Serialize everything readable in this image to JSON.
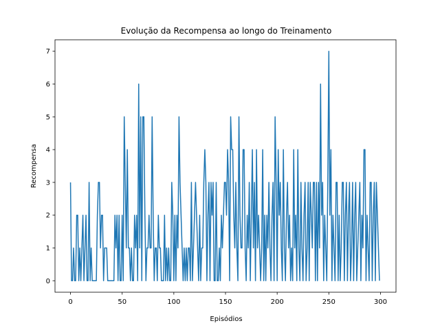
{
  "chart_data": {
    "type": "line",
    "title": "Evolução da Recompensa ao longo do Treinamento",
    "x_label": "Episódios",
    "y_label": "Recompensa",
    "x": [
      0,
      1,
      2,
      3,
      4,
      5,
      6,
      7,
      8,
      9,
      10,
      11,
      12,
      13,
      14,
      15,
      16,
      17,
      18,
      19,
      20,
      21,
      22,
      23,
      24,
      25,
      26,
      27,
      28,
      29,
      30,
      31,
      32,
      33,
      34,
      35,
      36,
      37,
      38,
      39,
      40,
      41,
      42,
      43,
      44,
      45,
      46,
      47,
      48,
      49,
      50,
      51,
      52,
      53,
      54,
      55,
      56,
      57,
      58,
      59,
      60,
      61,
      62,
      63,
      64,
      65,
      66,
      67,
      68,
      69,
      70,
      71,
      72,
      73,
      74,
      75,
      76,
      77,
      78,
      79,
      80,
      81,
      82,
      83,
      84,
      85,
      86,
      87,
      88,
      89,
      90,
      91,
      92,
      93,
      94,
      95,
      96,
      97,
      98,
      99,
      100,
      101,
      102,
      103,
      104,
      105,
      106,
      107,
      108,
      109,
      110,
      111,
      112,
      113,
      114,
      115,
      116,
      117,
      118,
      119,
      120,
      121,
      122,
      123,
      124,
      125,
      126,
      127,
      128,
      129,
      130,
      131,
      132,
      133,
      134,
      135,
      136,
      137,
      138,
      139,
      140,
      141,
      142,
      143,
      144,
      145,
      146,
      147,
      148,
      149,
      150,
      151,
      152,
      153,
      154,
      155,
      156,
      157,
      158,
      159,
      160,
      161,
      162,
      163,
      164,
      165,
      166,
      167,
      168,
      169,
      170,
      171,
      172,
      173,
      174,
      175,
      176,
      177,
      178,
      179,
      180,
      181,
      182,
      183,
      184,
      185,
      186,
      187,
      188,
      189,
      190,
      191,
      192,
      193,
      194,
      195,
      196,
      197,
      198,
      199,
      200,
      201,
      202,
      203,
      204,
      205,
      206,
      207,
      208,
      209,
      210,
      211,
      212,
      213,
      214,
      215,
      216,
      217,
      218,
      219,
      220,
      221,
      222,
      223,
      224,
      225,
      226,
      227,
      228,
      229,
      230,
      231,
      232,
      233,
      234,
      235,
      236,
      237,
      238,
      239,
      240,
      241,
      242,
      243,
      244,
      245,
      246,
      247,
      248,
      249,
      250,
      251,
      252,
      253,
      254,
      255,
      256,
      257,
      258,
      259,
      260,
      261,
      262,
      263,
      264,
      265,
      266,
      267,
      268,
      269,
      270,
      271,
      272,
      273,
      274,
      275,
      276,
      277,
      278,
      279,
      280,
      281,
      282,
      283,
      284,
      285,
      286,
      287,
      288,
      289,
      290,
      291,
      292,
      293,
      294,
      295,
      296,
      297,
      298,
      299
    ],
    "series": [
      {
        "color": "#1f77b4",
        "values": [
          3,
          0,
          0,
          1,
          0,
          0,
          2,
          2,
          0,
          1,
          0,
          1,
          2,
          0,
          1,
          2,
          0,
          0,
          3,
          0,
          1,
          0,
          0,
          0,
          0,
          0,
          2,
          3,
          3,
          1,
          2,
          2,
          0,
          1,
          1,
          1,
          0,
          0,
          0,
          0,
          0,
          0,
          0,
          2,
          1,
          2,
          0,
          2,
          0,
          0,
          2,
          0,
          5,
          3,
          1,
          4,
          1,
          1,
          0,
          1,
          0,
          0,
          2,
          1,
          2,
          0,
          6,
          1,
          5,
          0,
          5,
          5,
          2,
          0,
          1,
          1,
          2,
          1,
          1,
          5,
          2,
          0,
          1,
          1,
          0,
          2,
          1,
          1,
          0,
          0,
          0,
          2,
          0,
          1,
          0,
          1,
          0,
          0,
          3,
          2,
          0,
          2,
          0,
          2,
          1,
          5,
          3,
          2,
          1,
          0,
          1,
          0,
          1,
          0,
          1,
          1,
          0,
          3,
          0,
          1,
          2,
          3,
          2,
          1,
          0,
          2,
          0,
          1,
          1,
          3,
          4,
          3,
          0,
          2,
          3,
          0,
          3,
          2,
          3,
          0,
          0,
          3,
          0,
          0,
          1,
          0,
          2,
          1,
          2,
          3,
          3,
          2,
          4,
          3,
          0,
          5,
          4,
          4,
          2,
          1,
          3,
          1,
          0,
          5,
          2,
          1,
          1,
          4,
          4,
          1,
          0,
          2,
          1,
          3,
          0,
          2,
          4,
          1,
          3,
          0,
          4,
          1,
          2,
          1,
          0,
          1,
          4,
          0,
          2,
          0,
          2,
          1,
          3,
          1,
          0,
          2,
          3,
          0,
          5,
          3,
          0,
          4,
          2,
          3,
          1,
          0,
          4,
          1,
          0,
          2,
          3,
          1,
          2,
          0,
          1,
          0,
          4,
          1,
          2,
          0,
          4,
          1,
          0,
          3,
          1,
          0,
          2,
          3,
          0,
          1,
          3,
          0,
          3,
          2,
          1,
          3,
          3,
          0,
          3,
          0,
          3,
          1,
          6,
          2,
          3,
          0,
          2,
          1,
          0,
          3,
          7,
          2,
          4,
          0,
          2,
          1,
          0,
          3,
          3,
          0,
          2,
          0,
          1,
          3,
          3,
          0,
          2,
          3,
          0,
          2,
          3,
          0,
          1,
          3,
          0,
          2,
          3,
          0,
          1,
          2,
          3,
          0,
          2,
          1,
          4,
          4,
          0,
          2,
          1,
          0,
          3,
          3,
          0,
          2,
          3,
          0,
          3,
          2,
          1,
          0
        ]
      }
    ],
    "xlim": [
      -15,
      315
    ],
    "ylim": [
      -0.35,
      7.35
    ],
    "xticks": [
      0,
      50,
      100,
      150,
      200,
      250,
      300
    ],
    "yticks": [
      0,
      1,
      2,
      3,
      4,
      5,
      6,
      7
    ]
  }
}
